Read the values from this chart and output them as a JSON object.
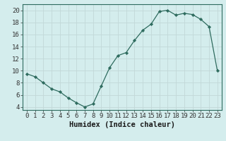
{
  "x": [
    0,
    1,
    2,
    3,
    4,
    5,
    6,
    7,
    8,
    9,
    10,
    11,
    12,
    13,
    14,
    15,
    16,
    17,
    18,
    19,
    20,
    21,
    22,
    23
  ],
  "y": [
    9.5,
    9.0,
    8.0,
    7.0,
    6.5,
    5.5,
    4.7,
    4.0,
    4.5,
    7.5,
    10.5,
    12.5,
    13.0,
    15.0,
    16.7,
    17.7,
    19.8,
    20.0,
    19.2,
    19.5,
    19.3,
    18.5,
    17.3,
    10.0
  ],
  "line_color": "#2e6b5e",
  "marker": "D",
  "marker_size": 2.2,
  "bg_color": "#d4eded",
  "grid_color_major": "#c2d8d8",
  "grid_color_minor": "#c2d8d8",
  "xlabel": "Humidex (Indice chaleur)",
  "xlim": [
    -0.5,
    23.5
  ],
  "ylim": [
    3.5,
    21
  ],
  "xticks": [
    0,
    1,
    2,
    3,
    4,
    5,
    6,
    7,
    8,
    9,
    10,
    11,
    12,
    13,
    14,
    15,
    16,
    17,
    18,
    19,
    20,
    21,
    22,
    23
  ],
  "yticks": [
    4,
    6,
    8,
    10,
    12,
    14,
    16,
    18,
    20
  ],
  "xlabel_fontsize": 7.5,
  "tick_fontsize": 6.5
}
